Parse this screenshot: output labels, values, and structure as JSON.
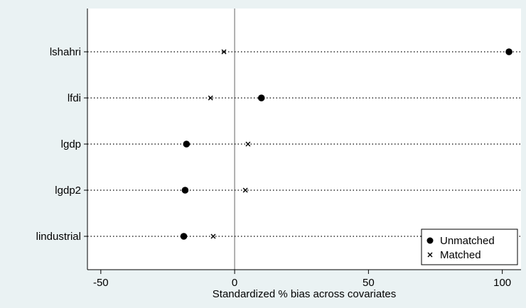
{
  "chart_data": {
    "type": "scatter",
    "title": "",
    "xlabel": "Standardized % bias across covariates",
    "ylabel": "",
    "categories": [
      "lshahri",
      "lfdi",
      "lgdp",
      "lgdp2",
      "lindustrial"
    ],
    "x_ticks": [
      -50,
      0,
      50,
      100
    ],
    "x_tick_labels": [
      "-50",
      "0",
      "50",
      "100"
    ],
    "xlim": [
      -55,
      107
    ],
    "grid": false,
    "reference_line": 0,
    "legend_position": "bottom-right",
    "series": [
      {
        "name": "Unmatched",
        "marker": "filled-circle",
        "values": [
          102.5,
          10,
          -18,
          -18.5,
          -19
        ]
      },
      {
        "name": "Matched",
        "marker": "x",
        "values": [
          -4,
          -9,
          5,
          4,
          -8
        ]
      }
    ],
    "colors": {
      "background": "#eaf2f3",
      "plot_area": "#ffffff",
      "marker": "#000000",
      "reference_line": "#999999"
    }
  }
}
